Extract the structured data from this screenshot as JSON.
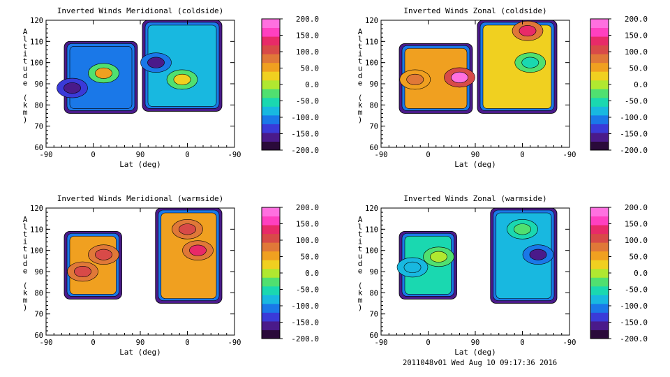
{
  "chart_data": [
    {
      "type": "contour",
      "title": "Inverted Winds Meridional (coldside)",
      "xlabel": "Lat (deg)",
      "ylabel": "Altitude (km)",
      "x_ticks": [
        "-90",
        "0",
        "90",
        "0",
        "-90"
      ],
      "ylim": [
        60,
        120
      ],
      "y_ticks": [
        "60",
        "70",
        "80",
        "90",
        "100",
        "110",
        "120"
      ],
      "colorbar_range": [
        -200,
        200
      ],
      "colorbar_ticks": [
        "200.0",
        "150.0",
        "100.0",
        "50.0",
        "0.0",
        "-50.0",
        "-100.0",
        "-150.0",
        "-200.0"
      ],
      "regions": [
        {
          "lat_from": -90,
          "lat_to": 90,
          "alt_bottom": 76,
          "alt_top": 110,
          "base_value": -100,
          "features": [
            {
              "lat": 20,
              "alt": 95,
              "value": 60
            },
            {
              "lat": -40,
              "alt": 88,
              "value": -150
            }
          ]
        },
        {
          "lat_from": 90,
          "lat_to": -70,
          "alt_bottom": 77,
          "alt_top": 120,
          "base_value": -70,
          "features": [
            {
              "lat": 60,
              "alt": 100,
              "value": -170
            },
            {
              "lat": 10,
              "alt": 92,
              "value": 20
            }
          ]
        }
      ]
    },
    {
      "type": "contour",
      "title": "Inverted Winds Zonal (coldside)",
      "xlabel": "Lat (deg)",
      "ylabel": "Altitude (km)",
      "x_ticks": [
        "-90",
        "0",
        "90",
        "0",
        "-90"
      ],
      "ylim": [
        60,
        120
      ],
      "y_ticks": [
        "60",
        "70",
        "80",
        "90",
        "100",
        "110",
        "120"
      ],
      "colorbar_range": [
        -200,
        200
      ],
      "colorbar_ticks": [
        "200.0",
        "150.0",
        "100.0",
        "50.0",
        "0.0",
        "-50.0",
        "-100.0",
        "-150.0",
        "-200.0"
      ],
      "regions": [
        {
          "lat_from": -90,
          "lat_to": 90,
          "alt_bottom": 76,
          "alt_top": 109,
          "base_value": 40,
          "features": [
            {
              "lat": 60,
              "alt": 93,
              "value": 190
            },
            {
              "lat": -25,
              "alt": 92,
              "value": 90
            }
          ]
        },
        {
          "lat_from": 90,
          "lat_to": -70,
          "alt_bottom": 76,
          "alt_top": 120,
          "base_value": 20,
          "features": [
            {
              "lat": -10,
              "alt": 115,
              "value": 140
            },
            {
              "lat": -15,
              "alt": 100,
              "value": -60
            }
          ]
        }
      ]
    },
    {
      "type": "contour",
      "title": "Inverted Winds Meridional (warmside)",
      "xlabel": "Lat (deg)",
      "ylabel": "Altitude (km)",
      "x_ticks": [
        "-90",
        "0",
        "90",
        "0",
        "-90"
      ],
      "ylim": [
        60,
        120
      ],
      "y_ticks": [
        "60",
        "70",
        "80",
        "90",
        "100",
        "110",
        "120"
      ],
      "colorbar_range": [
        -200,
        200
      ],
      "colorbar_ticks": [
        "200.0",
        "150.0",
        "100.0",
        "50.0",
        "0.0",
        "-50.0",
        "-100.0",
        "-150.0",
        "-200.0"
      ],
      "regions": [
        {
          "lat_from": -90,
          "lat_to": 60,
          "alt_bottom": 77,
          "alt_top": 109,
          "base_value": 40,
          "features": [
            {
              "lat": -20,
              "alt": 90,
              "value": 110
            },
            {
              "lat": 20,
              "alt": 98,
              "value": 110
            }
          ]
        },
        {
          "lat_from": 65,
          "lat_to": -70,
          "alt_bottom": 75,
          "alt_top": 120,
          "base_value": 50,
          "features": [
            {
              "lat": 0,
              "alt": 110,
              "value": 110
            },
            {
              "lat": -20,
              "alt": 100,
              "value": 120
            }
          ]
        }
      ]
    },
    {
      "type": "contour",
      "title": "Inverted Winds Zonal (warmside)",
      "xlabel": "Lat (deg)",
      "ylabel": "Altitude (km)",
      "x_ticks": [
        "-90",
        "0",
        "90",
        "0",
        "-90"
      ],
      "ylim": [
        60,
        120
      ],
      "y_ticks": [
        "60",
        "70",
        "80",
        "90",
        "100",
        "110",
        "120"
      ],
      "colorbar_range": [
        -200,
        200
      ],
      "colorbar_ticks": [
        "200.0",
        "150.0",
        "100.0",
        "50.0",
        "0.0",
        "-50.0",
        "-100.0",
        "-150.0",
        "-200.0"
      ],
      "regions": [
        {
          "lat_from": -90,
          "lat_to": 60,
          "alt_bottom": 77,
          "alt_top": 109,
          "base_value": -60,
          "features": [
            {
              "lat": 20,
              "alt": 97,
              "value": -10
            },
            {
              "lat": -30,
              "alt": 92,
              "value": -80
            }
          ]
        },
        {
          "lat_from": 65,
          "lat_to": -70,
          "alt_bottom": 75,
          "alt_top": 120,
          "base_value": -70,
          "features": [
            {
              "lat": 0,
              "alt": 110,
              "value": -20
            },
            {
              "lat": -30,
              "alt": 98,
              "value": -150
            }
          ]
        }
      ]
    }
  ],
  "colorbar_colors": [
    "#2a0a3a",
    "#4a1a8a",
    "#3a3ad8",
    "#1a78e8",
    "#18b8e0",
    "#1ad8b0",
    "#50e070",
    "#b0e830",
    "#f0d020",
    "#f0a020",
    "#e07838",
    "#d84a48",
    "#e82a68",
    "#ff40c0",
    "#ff70e0"
  ],
  "footer": {
    "stamp": "2011048v01 Wed Aug 10 09:17:36 2016"
  }
}
